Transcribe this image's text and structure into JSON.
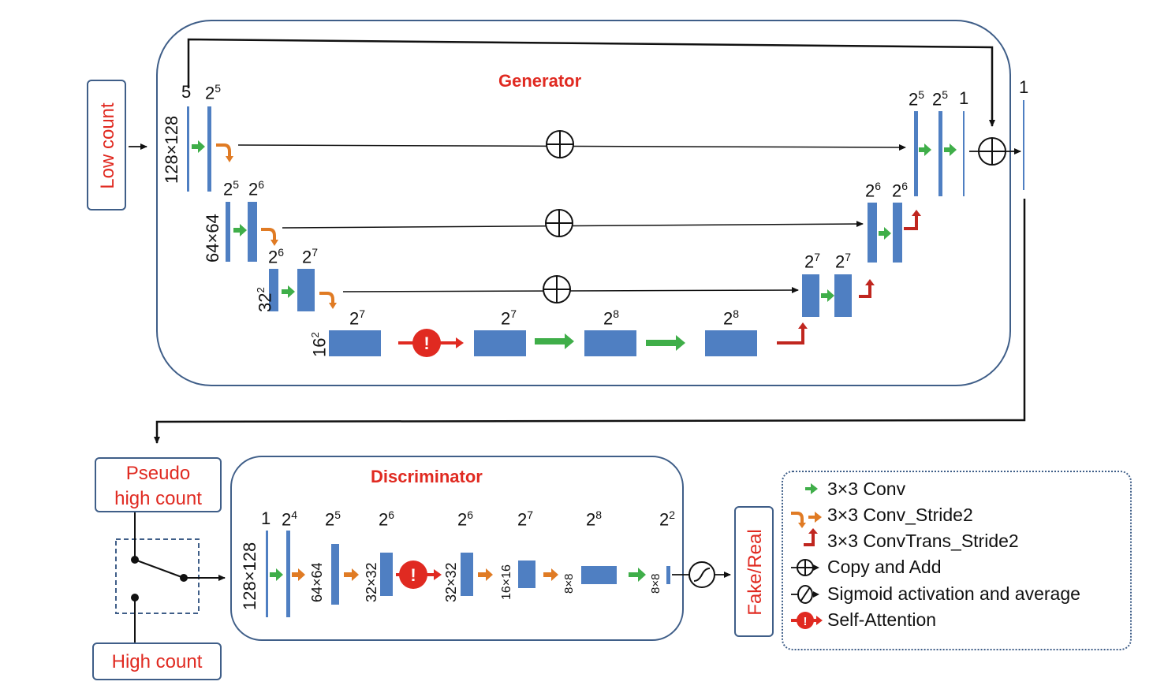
{
  "generator": {
    "title": "Generator",
    "input_label": "Low count",
    "scale_labels": [
      "128×128",
      "64×64",
      "32",
      "16"
    ],
    "scale_sup": [
      "",
      "",
      "2",
      "2"
    ],
    "enc_channels": [
      [
        "5",
        "2",
        "5"
      ],
      [
        "2",
        "5",
        "2",
        "6"
      ],
      [
        "2",
        "6",
        "2",
        "7"
      ]
    ],
    "bottleneck_channels": [
      "7",
      "7",
      "8",
      "8"
    ],
    "dec_channels": [
      [
        "5",
        "5"
      ],
      [
        "6",
        "6"
      ],
      [
        "7",
        "7"
      ]
    ],
    "output_channel": "1",
    "top_out_channel": "1"
  },
  "discriminator": {
    "title": "Discriminator",
    "input_real": "High count",
    "input_fake_1": "Pseudo",
    "input_fake_2": "high count",
    "output_label": "Fake/Real",
    "first_input_dim": "128×128",
    "channels": [
      "1",
      "4",
      "5",
      "6",
      "6",
      "7",
      "8",
      "2"
    ],
    "dims": [
      "64×64",
      "32×32",
      "32×32",
      "16×16",
      "8×8",
      "8×8"
    ]
  },
  "legend": {
    "items": [
      {
        "icon": "green-arrow-icon",
        "text": "3×3 Conv"
      },
      {
        "icon": "orange-hook-arrow-icon",
        "text": "3×3 Conv_Stride2"
      },
      {
        "icon": "red-up-arrow-icon",
        "text": "3×3 ConvTrans_Stride2"
      },
      {
        "icon": "copy-add-icon",
        "text": "Copy and Add"
      },
      {
        "icon": "sigmoid-icon",
        "text": "Sigmoid activation and average"
      },
      {
        "icon": "self-attention-icon",
        "text": "Self-Attention"
      }
    ]
  },
  "colors": {
    "block": "#4f7fc2",
    "conv": "#3fae49",
    "stride": "#e07b24",
    "trans": "#c0261f",
    "attention": "#e02a21",
    "frame": "#3f5e88",
    "title_red": "#e02a21"
  },
  "symbols": {
    "base": "2",
    "attention_mark": "!"
  }
}
